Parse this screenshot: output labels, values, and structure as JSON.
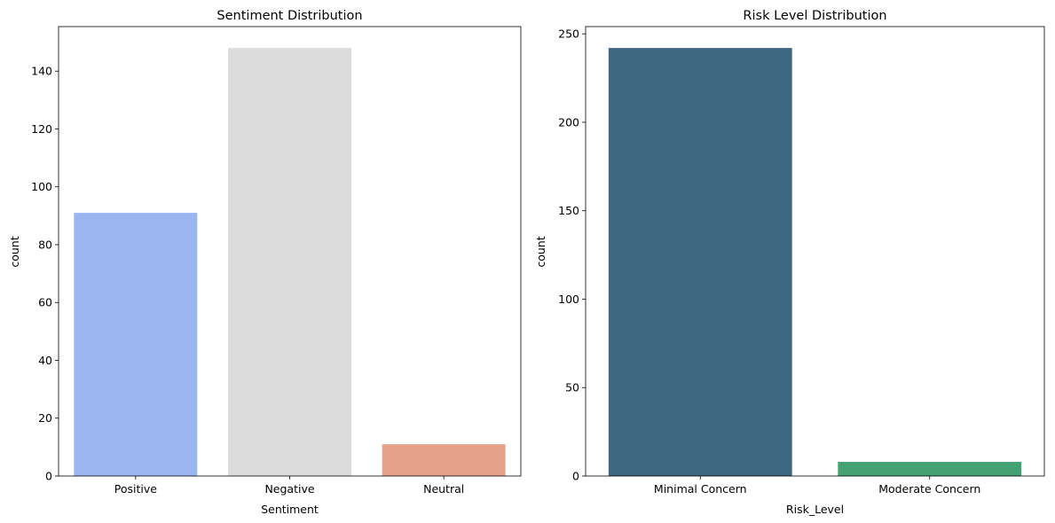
{
  "chart_data": [
    {
      "type": "bar",
      "title": "Sentiment Distribution",
      "xlabel": "Sentiment",
      "ylabel": "count",
      "categories": [
        "Positive",
        "Negative",
        "Neutral"
      ],
      "values": [
        91,
        148,
        11
      ],
      "colors": [
        "#9bb5f1",
        "#dcdcdc",
        "#e5a28b"
      ],
      "ylim": [
        0,
        155.4
      ],
      "yticks": [
        0,
        20,
        40,
        60,
        80,
        100,
        120,
        140
      ],
      "grid": false,
      "legend": "none"
    },
    {
      "type": "bar",
      "title": "Risk Level Distribution",
      "xlabel": "Risk_Level",
      "ylabel": "count",
      "categories": [
        "Minimal Concern",
        "Moderate Concern"
      ],
      "values": [
        242,
        8
      ],
      "colors": [
        "#3e6680",
        "#44a172"
      ],
      "ylim": [
        0,
        254.1
      ],
      "yticks": [
        0,
        50,
        100,
        150,
        200,
        250
      ],
      "grid": false,
      "legend": "none"
    }
  ]
}
